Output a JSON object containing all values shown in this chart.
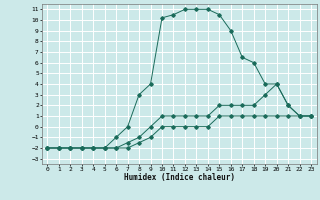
{
  "xlabel": "Humidex (Indice chaleur)",
  "ylabel": "",
  "background_color": "#cce9e9",
  "line_color": "#1a6b5a",
  "grid_color": "#ffffff",
  "xlim": [
    -0.5,
    23.5
  ],
  "ylim": [
    -3.5,
    11.5
  ],
  "xticks": [
    0,
    1,
    2,
    3,
    4,
    5,
    6,
    7,
    8,
    9,
    10,
    11,
    12,
    13,
    14,
    15,
    16,
    17,
    18,
    19,
    20,
    21,
    22,
    23
  ],
  "yticks": [
    -3,
    -2,
    -1,
    0,
    1,
    2,
    3,
    4,
    5,
    6,
    7,
    8,
    9,
    10,
    11
  ],
  "line1_x": [
    0,
    1,
    2,
    3,
    4,
    5,
    6,
    7,
    8,
    9,
    10,
    11,
    12,
    13,
    14,
    15,
    16,
    17,
    18,
    19,
    20,
    21,
    22,
    23
  ],
  "line1_y": [
    -2,
    -2,
    -2,
    -2,
    -2,
    -2,
    -2,
    -2,
    -1.5,
    -1,
    0,
    0,
    0,
    0,
    0,
    1,
    1,
    1,
    1,
    1,
    1,
    1,
    1,
    1
  ],
  "line2_x": [
    0,
    1,
    2,
    3,
    4,
    5,
    6,
    7,
    8,
    9,
    10,
    11,
    12,
    13,
    14,
    15,
    16,
    17,
    18,
    19,
    20,
    21,
    22,
    23
  ],
  "line2_y": [
    -2,
    -2,
    -2,
    -2,
    -2,
    -2,
    -2,
    -1.5,
    -1,
    0,
    1,
    1,
    1,
    1,
    1,
    2,
    2,
    2,
    2,
    3,
    4,
    2,
    1,
    1
  ],
  "line3_x": [
    0,
    1,
    2,
    3,
    4,
    5,
    6,
    7,
    8,
    9,
    10,
    11,
    12,
    13,
    14,
    15,
    16,
    17,
    18,
    19,
    20,
    21,
    22,
    23
  ],
  "line3_y": [
    -2,
    -2,
    -2,
    -2,
    -2,
    -2,
    -1,
    0,
    3,
    4,
    10.2,
    10.5,
    11,
    11,
    11,
    10.5,
    9,
    6.5,
    6,
    4,
    4,
    2,
    1,
    1
  ]
}
